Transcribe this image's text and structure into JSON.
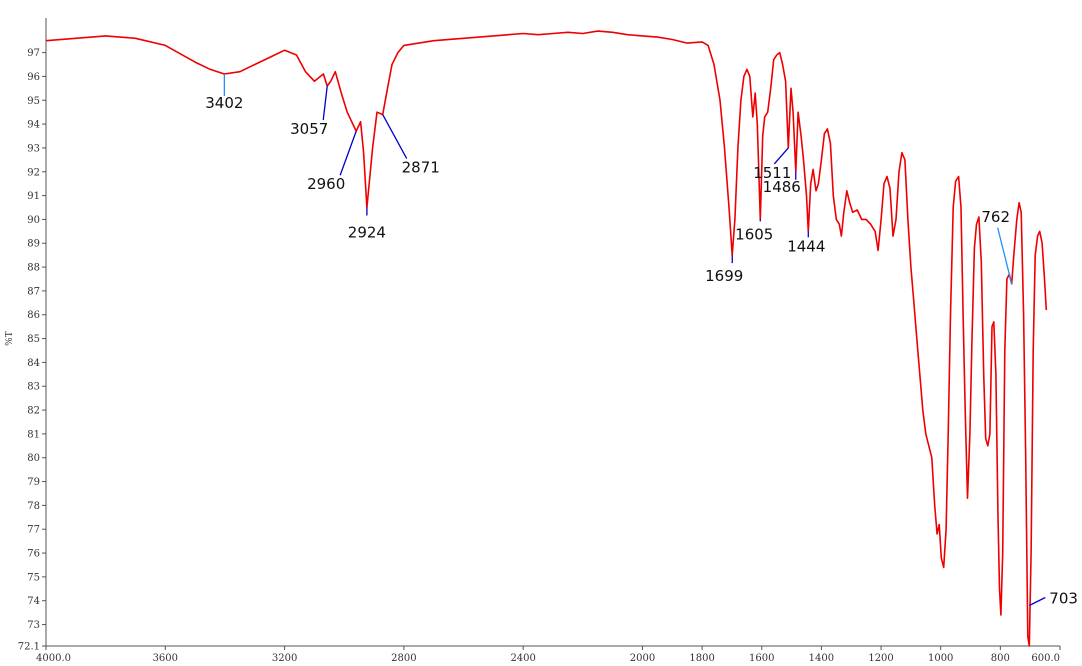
{
  "chart_data": {
    "type": "line",
    "title": "",
    "xlabel": "",
    "ylabel": "%T",
    "xlim": [
      4000.0,
      600.0
    ],
    "ylim": [
      72.1,
      98.2
    ],
    "x_ticks": [
      "4000.0",
      "3600",
      "3200",
      "2800",
      "2400",
      "2000",
      "1800",
      "1600",
      "1400",
      "1200",
      "1000",
      "800",
      "600.0"
    ],
    "y_ticks": [
      "72.1",
      "73",
      "74",
      "75",
      "76",
      "77",
      "78",
      "79",
      "80",
      "81",
      "82",
      "83",
      "84",
      "85",
      "86",
      "87",
      "88",
      "89",
      "90",
      "91",
      "92",
      "93",
      "94",
      "95",
      "96",
      "97"
    ],
    "grid": false,
    "line_color": "#ee0000",
    "series": [
      {
        "name": "",
        "points": [
          [
            4000,
            97.5
          ],
          [
            3900,
            97.6
          ],
          [
            3800,
            97.7
          ],
          [
            3700,
            97.6
          ],
          [
            3600,
            97.3
          ],
          [
            3500,
            96.6
          ],
          [
            3450,
            96.3
          ],
          [
            3402,
            96.1
          ],
          [
            3350,
            96.2
          ],
          [
            3300,
            96.5
          ],
          [
            3250,
            96.8
          ],
          [
            3200,
            97.1
          ],
          [
            3160,
            96.9
          ],
          [
            3130,
            96.2
          ],
          [
            3100,
            95.8
          ],
          [
            3070,
            96.1
          ],
          [
            3057,
            95.6
          ],
          [
            3045,
            95.8
          ],
          [
            3030,
            96.2
          ],
          [
            3010,
            95.3
          ],
          [
            2990,
            94.5
          ],
          [
            2960,
            93.7
          ],
          [
            2945,
            94.1
          ],
          [
            2935,
            92.8
          ],
          [
            2924,
            90.5
          ],
          [
            2905,
            93.0
          ],
          [
            2890,
            94.5
          ],
          [
            2871,
            94.4
          ],
          [
            2855,
            95.5
          ],
          [
            2840,
            96.5
          ],
          [
            2820,
            97.0
          ],
          [
            2800,
            97.3
          ],
          [
            2700,
            97.5
          ],
          [
            2600,
            97.6
          ],
          [
            2500,
            97.7
          ],
          [
            2400,
            97.8
          ],
          [
            2350,
            97.75
          ],
          [
            2300,
            97.8
          ],
          [
            2250,
            97.85
          ],
          [
            2200,
            97.8
          ],
          [
            2150,
            97.9
          ],
          [
            2100,
            97.85
          ],
          [
            2050,
            97.75
          ],
          [
            2000,
            97.7
          ],
          [
            1950,
            97.65
          ],
          [
            1900,
            97.55
          ],
          [
            1850,
            97.4
          ],
          [
            1800,
            97.45
          ],
          [
            1780,
            97.3
          ],
          [
            1760,
            96.5
          ],
          [
            1740,
            95.0
          ],
          [
            1725,
            93.0
          ],
          [
            1710,
            90.5
          ],
          [
            1699,
            88.5
          ],
          [
            1690,
            90.0
          ],
          [
            1680,
            93.0
          ],
          [
            1670,
            95.0
          ],
          [
            1660,
            96.0
          ],
          [
            1650,
            96.3
          ],
          [
            1640,
            96.0
          ],
          [
            1630,
            94.3
          ],
          [
            1622,
            95.3
          ],
          [
            1615,
            94.0
          ],
          [
            1605,
            90.0
          ],
          [
            1597,
            93.5
          ],
          [
            1590,
            94.3
          ],
          [
            1580,
            94.5
          ],
          [
            1570,
            95.5
          ],
          [
            1560,
            96.7
          ],
          [
            1550,
            96.9
          ],
          [
            1540,
            97.0
          ],
          [
            1530,
            96.5
          ],
          [
            1520,
            95.8
          ],
          [
            1511,
            93.0
          ],
          [
            1502,
            95.5
          ],
          [
            1495,
            94.5
          ],
          [
            1486,
            92.0
          ],
          [
            1478,
            94.5
          ],
          [
            1468,
            93.5
          ],
          [
            1460,
            92.5
          ],
          [
            1450,
            91.0
          ],
          [
            1444,
            89.5
          ],
          [
            1436,
            91.5
          ],
          [
            1428,
            92.1
          ],
          [
            1418,
            91.2
          ],
          [
            1410,
            91.5
          ],
          [
            1400,
            92.5
          ],
          [
            1390,
            93.6
          ],
          [
            1380,
            93.8
          ],
          [
            1370,
            93.2
          ],
          [
            1360,
            91.0
          ],
          [
            1350,
            90.0
          ],
          [
            1340,
            89.8
          ],
          [
            1333,
            89.3
          ],
          [
            1325,
            90.3
          ],
          [
            1315,
            91.2
          ],
          [
            1305,
            90.7
          ],
          [
            1295,
            90.3
          ],
          [
            1280,
            90.4
          ],
          [
            1265,
            90.0
          ],
          [
            1250,
            90.0
          ],
          [
            1235,
            89.8
          ],
          [
            1220,
            89.5
          ],
          [
            1210,
            88.7
          ],
          [
            1200,
            90.0
          ],
          [
            1190,
            91.5
          ],
          [
            1180,
            91.8
          ],
          [
            1170,
            91.3
          ],
          [
            1160,
            89.3
          ],
          [
            1150,
            90.0
          ],
          [
            1140,
            92.0
          ],
          [
            1130,
            92.8
          ],
          [
            1120,
            92.5
          ],
          [
            1110,
            90.0
          ],
          [
            1100,
            88.0
          ],
          [
            1090,
            86.5
          ],
          [
            1080,
            85.0
          ],
          [
            1070,
            83.5
          ],
          [
            1060,
            82.0
          ],
          [
            1050,
            81.0
          ],
          [
            1040,
            80.5
          ],
          [
            1030,
            80.0
          ],
          [
            1020,
            78.0
          ],
          [
            1012,
            76.8
          ],
          [
            1005,
            77.2
          ],
          [
            998,
            75.8
          ],
          [
            990,
            75.4
          ],
          [
            982,
            77.0
          ],
          [
            975,
            81.0
          ],
          [
            967,
            86.0
          ],
          [
            958,
            90.5
          ],
          [
            950,
            91.6
          ],
          [
            940,
            91.8
          ],
          [
            932,
            90.5
          ],
          [
            925,
            86.0
          ],
          [
            918,
            82.0
          ],
          [
            910,
            78.3
          ],
          [
            902,
            81.0
          ],
          [
            895,
            85.0
          ],
          [
            887,
            88.8
          ],
          [
            880,
            89.8
          ],
          [
            872,
            90.1
          ],
          [
            864,
            88.2
          ],
          [
            856,
            83.5
          ],
          [
            849,
            80.8
          ],
          [
            842,
            80.5
          ],
          [
            835,
            81.0
          ],
          [
            828,
            85.5
          ],
          [
            822,
            85.7
          ],
          [
            815,
            83.5
          ],
          [
            808,
            77.5
          ],
          [
            803,
            74.5
          ],
          [
            798,
            73.4
          ],
          [
            792,
            76.0
          ],
          [
            785,
            84.5
          ],
          [
            778,
            87.5
          ],
          [
            770,
            87.7
          ],
          [
            762,
            87.3
          ],
          [
            755,
            88.5
          ],
          [
            745,
            90.0
          ],
          [
            737,
            90.7
          ],
          [
            730,
            90.3
          ],
          [
            722,
            86.0
          ],
          [
            715,
            80.0
          ],
          [
            708,
            72.5
          ],
          [
            703,
            72.1
          ],
          [
            697,
            76.0
          ],
          [
            690,
            84.5
          ],
          [
            683,
            88.5
          ],
          [
            675,
            89.3
          ],
          [
            668,
            89.5
          ],
          [
            660,
            89.0
          ],
          [
            652,
            87.5
          ],
          [
            646,
            86.2
          ]
        ]
      }
    ],
    "annotations": [
      {
        "label": "3402",
        "x": 3402,
        "y": 96.1,
        "color": "#1e90ff"
      },
      {
        "label": "3057",
        "x": 3057,
        "y": 95.6,
        "color": "#0000cc"
      },
      {
        "label": "2960",
        "x": 2960,
        "y": 93.7,
        "color": "#0000cc"
      },
      {
        "label": "2924",
        "x": 2924,
        "y": 90.5,
        "color": "#0000cc"
      },
      {
        "label": "2871",
        "x": 2871,
        "y": 94.4,
        "color": "#0000cc"
      },
      {
        "label": "1699",
        "x": 1699,
        "y": 88.5,
        "color": "#0000cc"
      },
      {
        "label": "1605",
        "x": 1605,
        "y": 90.0,
        "color": "#0000cc"
      },
      {
        "label": "1511",
        "x": 1511,
        "y": 93.0,
        "color": "#0000cc"
      },
      {
        "label": "1486",
        "x": 1486,
        "y": 92.0,
        "color": "#0000cc"
      },
      {
        "label": "1444",
        "x": 1444,
        "y": 89.5,
        "color": "#0000cc"
      },
      {
        "label": "762",
        "x": 762,
        "y": 87.3,
        "color": "#1e90ff"
      },
      {
        "label": "703",
        "x": 703,
        "y": 73.8,
        "color": "#0000cc"
      }
    ]
  }
}
